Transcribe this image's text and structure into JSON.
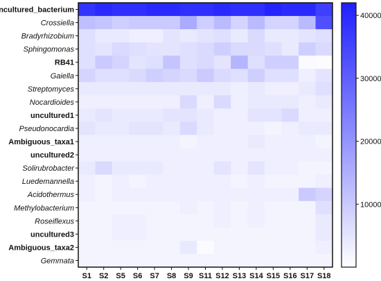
{
  "chart_data": {
    "type": "heatmap",
    "title": "",
    "columns": [
      "S1",
      "S2",
      "S5",
      "S6",
      "S7",
      "S8",
      "S9",
      "S11",
      "S12",
      "S13",
      "S14",
      "S15",
      "S16",
      "S17",
      "S18"
    ],
    "rows": [
      {
        "name": "uncultured_bacterium",
        "style": "bold"
      },
      {
        "name": "Crossiella",
        "style": "italic"
      },
      {
        "name": "Bradyrhizobium",
        "style": "italic"
      },
      {
        "name": "Sphingomonas",
        "style": "italic"
      },
      {
        "name": "RB41",
        "style": "bold"
      },
      {
        "name": "Gaiella",
        "style": "italic"
      },
      {
        "name": "Streptomyces",
        "style": "italic"
      },
      {
        "name": "Nocardioides",
        "style": "italic"
      },
      {
        "name": "uncultured1",
        "style": "bold"
      },
      {
        "name": "Pseudonocardia",
        "style": "italic"
      },
      {
        "name": "Ambiguous_taxa1",
        "style": "bold"
      },
      {
        "name": "uncultured2",
        "style": "bold"
      },
      {
        "name": "Solirubrobacter",
        "style": "italic"
      },
      {
        "name": "Luedemannella",
        "style": "italic"
      },
      {
        "name": "Acidothermus",
        "style": "italic"
      },
      {
        "name": "Methylobacterium",
        "style": "italic"
      },
      {
        "name": "Roseiflexus",
        "style": "italic"
      },
      {
        "name": "uncultured3",
        "style": "bold"
      },
      {
        "name": "Ambiguous_taxa2",
        "style": "bold"
      },
      {
        "name": "Gemmata",
        "style": "italic"
      }
    ],
    "values": [
      [
        38000,
        40000,
        39000,
        39000,
        40000,
        40000,
        39000,
        39000,
        40000,
        39000,
        39000,
        41000,
        40000,
        40000,
        36000
      ],
      [
        12000,
        11000,
        9000,
        10000,
        10000,
        10000,
        16000,
        9000,
        13000,
        8000,
        13000,
        8000,
        8000,
        13000,
        33000
      ],
      [
        6000,
        4000,
        4000,
        3000,
        3000,
        5000,
        4000,
        5000,
        6000,
        4000,
        7000,
        4000,
        4000,
        5000,
        6000
      ],
      [
        6000,
        5000,
        7000,
        6000,
        5000,
        5000,
        6000,
        7000,
        9000,
        7000,
        7000,
        6000,
        4000,
        9000,
        7000
      ],
      [
        6000,
        10000,
        8000,
        5000,
        6000,
        11000,
        6000,
        7000,
        5000,
        14000,
        6000,
        9000,
        9000,
        1000,
        500
      ],
      [
        8000,
        6000,
        6000,
        7000,
        9000,
        8000,
        7000,
        10000,
        7000,
        6000,
        9000,
        6000,
        6000,
        3000,
        5000
      ],
      [
        4000,
        4000,
        4000,
        4000,
        4000,
        4000,
        4000,
        4000,
        4000,
        3000,
        4000,
        3000,
        3000,
        4000,
        6000
      ],
      [
        3000,
        3000,
        3000,
        3000,
        3000,
        3000,
        7000,
        3000,
        7000,
        3000,
        4000,
        4000,
        4000,
        3000,
        4000
      ],
      [
        4000,
        5000,
        4000,
        4000,
        4000,
        5000,
        5000,
        4000,
        3000,
        3000,
        5000,
        5000,
        7000,
        3000,
        3000
      ],
      [
        5000,
        4000,
        4000,
        5000,
        5000,
        4000,
        7000,
        4000,
        3000,
        3000,
        3000,
        2000,
        3000,
        4000,
        4000
      ],
      [
        3000,
        3000,
        3000,
        3000,
        3000,
        3000,
        2000,
        3000,
        3000,
        3000,
        4000,
        3000,
        3000,
        3000,
        2000
      ],
      [
        3000,
        3000,
        3000,
        3000,
        3000,
        3000,
        3000,
        3000,
        3000,
        3000,
        3000,
        3000,
        3000,
        3000,
        3000
      ],
      [
        4000,
        7000,
        4000,
        4000,
        4000,
        3000,
        3000,
        3000,
        5000,
        3000,
        5000,
        3000,
        3000,
        2000,
        2000
      ],
      [
        3000,
        2000,
        3000,
        2000,
        3000,
        3000,
        3000,
        3000,
        3000,
        2000,
        3000,
        2000,
        2000,
        2000,
        3000
      ],
      [
        3000,
        2000,
        3000,
        3000,
        3000,
        3000,
        3000,
        3000,
        3000,
        3000,
        3000,
        3000,
        3000,
        10000,
        8000
      ],
      [
        2000,
        2000,
        2000,
        2000,
        2000,
        2000,
        3000,
        2000,
        3000,
        2000,
        3000,
        2000,
        2000,
        2000,
        6000
      ],
      [
        2000,
        2000,
        3000,
        3000,
        2000,
        2000,
        2000,
        2000,
        3000,
        2000,
        3000,
        2000,
        2000,
        2000,
        4000
      ],
      [
        2000,
        2000,
        3000,
        3000,
        2000,
        2000,
        2000,
        2000,
        2000,
        2000,
        2000,
        2000,
        2000,
        2000,
        4000
      ],
      [
        2000,
        2000,
        2000,
        2000,
        2000,
        2000,
        4000,
        1000,
        2000,
        2000,
        2000,
        2000,
        2000,
        2000,
        3000
      ],
      [
        2000,
        2000,
        2000,
        2000,
        2000,
        2000,
        2000,
        2000,
        2000,
        2000,
        2000,
        2000,
        2000,
        2000,
        2000
      ]
    ],
    "colorbar": {
      "min": 0,
      "max": 42000,
      "ticks": [
        10000,
        20000,
        30000,
        40000
      ],
      "tick_labels": [
        "10000",
        "20000",
        "30000",
        "40000"
      ],
      "color_low": "#ffffff",
      "color_high": "#1f1fff"
    },
    "grid": false,
    "legend_position": "right"
  }
}
